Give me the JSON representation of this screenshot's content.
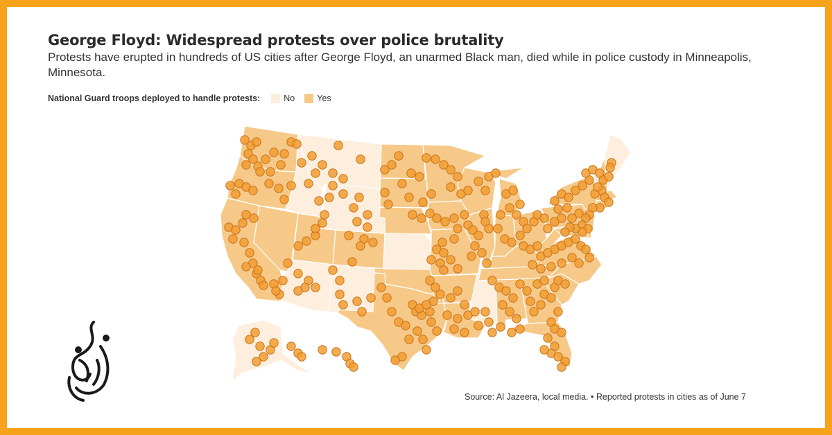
{
  "title": "George Floyd: Widespread protests over police brutality",
  "subtitle": "Protests have erupted in hundreds of US cities after George Floyd, an unarmed Black man, died while in police custody in Minneapolis, Minnesota.",
  "legend": {
    "title": "National Guard troops deployed to handle protests:",
    "items": [
      {
        "label": "No",
        "color": "#fdeedd"
      },
      {
        "label": "Yes",
        "color": "#f6c989"
      }
    ]
  },
  "source": "Source: Al Jazeera, local media. • Reported protests in cities as of June 7",
  "colors": {
    "border": "#f7a21b",
    "marker_fill": "#f29d33",
    "marker_stroke": "#c9731a",
    "state_border": "#ffffff"
  },
  "map_data": {
    "guard_deployed_states": [
      "WA",
      "OR",
      "CA",
      "NV",
      "UT",
      "AZ",
      "CO",
      "TX",
      "ND",
      "SD",
      "NE",
      "MN",
      "WI",
      "IA",
      "MO",
      "IL",
      "MI",
      "OH",
      "KY",
      "TN",
      "AL",
      "GA",
      "SC",
      "NC",
      "VA",
      "WV",
      "PA",
      "NY",
      "NJ",
      "MD",
      "DE",
      "CT",
      "MA",
      "NH",
      "FL",
      "LA",
      "AR",
      "OK",
      "IN"
    ],
    "no_guard_states": [
      "ID",
      "MT",
      "WY",
      "NM",
      "KS",
      "MS",
      "VT",
      "ME",
      "RI",
      "AK"
    ],
    "protest_city_markers_description": "Hundreds of orange circles marking cities with reported protests"
  },
  "logo": {
    "name": "Al Jazeera logo"
  }
}
